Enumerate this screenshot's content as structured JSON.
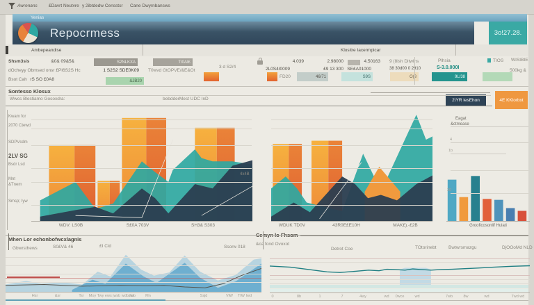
{
  "menu": {
    "items": [
      "Awrenans",
      "£Davrt Neutvre",
      "y 2ibtdedw Censstsr",
      "Cane Dwyrnbansws"
    ]
  },
  "header": {
    "tab_label": "Yenias",
    "title": "Repocrmess",
    "badge_value": "3o!27.28."
  },
  "tabbar": {
    "active_tab": "Ambepeandise",
    "second_tab": "Klositre Iacermpicar"
  },
  "kpi": {
    "row1": {
      "label": "Shsm3sis",
      "value": "&0& 09&5&",
      "bar1_text": "S2NLKXA",
      "bar2_text": "TI0AI£",
      "v2": "4.039",
      "v3": "2.98000",
      "v4": "4.50163",
      "v5": "9 (8ish Ditwlns",
      "group_label": "Plhsia",
      "tag1": "TIOS",
      "tag2": "WISIBIE"
    },
    "row2": {
      "label": "dOcheyy Obmsed onsr £PI6S2S Hc",
      "value": "1 S2S2 SDE0K09",
      "mid_text": "T0wvd GtOPVE/&E&Ot",
      "v2": "3 d S2/4",
      "v3": "2L0S4I0009",
      "v4": "£9 13 300",
      "v5": "SE£A01000",
      "v6": "38 30d00 0 2910",
      "accent_value": "S-3.0.000I",
      "right_text": "500kg &"
    },
    "row3": {
      "label": "Bsot Cah",
      "value": "rS SO £0A8",
      "green_bar_text": "&JB20",
      "orange_caption": "FD20",
      "gray_bar_text": "46/71",
      "teal_light_text": "S9S",
      "tan_bar_text": "O(3",
      "teal_bar_text": "9L/38"
    }
  },
  "section": {
    "title": "Sontesso Klosux",
    "subtitle": "Wwcs Blestiamo Gosoxdra:",
    "center_label": "bebdderMest UDC InD",
    "dark_button": "2\\YR lesEhon",
    "orange_button": "4E KKlorbxt"
  },
  "bottom_left": {
    "title": "Mhen Lor echonbofwcxlagnis",
    "labels": [
      "Gbwrsthews",
      "S0£V& 46",
      "£I Cld",
      "Ssorw 018"
    ]
  },
  "bottom_right": {
    "title": "Cemyn lo Fhsom",
    "subtitle": "&ca fond Ovoxot",
    "labels": [
      "Detrot Coe",
      "TOtorinebt",
      "Bwtwrsmazgu",
      "DjOOoMd NLD"
    ]
  },
  "colors": {
    "accent_teal": "#2fa8a2",
    "accent_orange": "#ef9840",
    "navy": "#2b3e50",
    "badge_teal": "#3aa9a4",
    "bar_orange_light": "#f6b13f",
    "bar_orange_dark": "#df5f31"
  },
  "chart_data": [
    {
      "name": "composite-bars-areas-left",
      "type": "area",
      "title": "",
      "xlabel": "",
      "ylabel": "",
      "categories": [
        "WDV: LS0B",
        "S£0A 703V",
        "SH3& S303"
      ],
      "y_labels": [
        "Kwam for",
        "2070 Ctewd",
        "SDPVcdm",
        "2LV SG",
        "Bsdr Lsd",
        "Mnt",
        "&Tnem",
        "Smsp; Iyw"
      ],
      "annotation": "4x4B",
      "ylim": [
        0,
        100
      ],
      "grid": true,
      "bars": [
        {
          "x": 8,
          "w": 21,
          "v": 70
        },
        {
          "x": 30,
          "w": 10,
          "v": 37
        },
        {
          "x": 41,
          "w": 20,
          "v": 95
        },
        {
          "x": 74,
          "w": 18,
          "v": 86
        }
      ],
      "series": [
        {
          "name": "teal-area",
          "color": "#2fa8a2",
          "opacity": 0.92,
          "points": [
            [
              4,
              19
            ],
            [
              20,
              36
            ],
            [
              29,
              11
            ],
            [
              37,
              16
            ],
            [
              50,
              55
            ],
            [
              56,
              45
            ],
            [
              62,
              36
            ],
            [
              64,
              47
            ],
            [
              74,
              66
            ],
            [
              77,
              58
            ],
            [
              82,
              55
            ],
            [
              91,
              55
            ],
            [
              100,
              52
            ]
          ]
        },
        {
          "name": "navy-area",
          "color": "#2b3e50",
          "opacity": 0.95,
          "points": [
            [
              4,
              4
            ],
            [
              20,
              10
            ],
            [
              29,
              13
            ],
            [
              37,
              7
            ],
            [
              50,
              30
            ],
            [
              56,
              21
            ],
            [
              62,
              7
            ],
            [
              74,
              34
            ],
            [
              82,
              30
            ],
            [
              91,
              51
            ],
            [
              100,
              56
            ]
          ]
        }
      ],
      "lines": [
        {
          "name": "trend-line-1",
          "color": "#e8e5de",
          "points": [
            [
              20,
              5
            ],
            [
              50,
              3
            ],
            [
              64,
              75
            ]
          ]
        },
        {
          "name": "trend-line-2",
          "color": "#e8e5de",
          "points": [
            [
              77,
              5
            ],
            [
              100,
              32
            ]
          ]
        }
      ]
    },
    {
      "name": "composite-bars-areas-right",
      "type": "area",
      "categories": [
        "WDUK TD0V",
        "43R0E£E10H",
        "MAK£).-£2B"
      ],
      "ylim": [
        0,
        100
      ],
      "grid": true,
      "bars": [
        {
          "x": 1,
          "w": 18,
          "v": 71
        },
        {
          "x": 25,
          "w": 19,
          "v": 74
        }
      ],
      "series": [
        {
          "name": "teal-area",
          "color": "#2fa8a2",
          "opacity": 0.92,
          "points": [
            [
              0,
              30
            ],
            [
              9,
              41
            ],
            [
              16,
              30
            ],
            [
              22,
              17
            ],
            [
              44,
              9
            ],
            [
              57,
              62
            ],
            [
              66,
              34
            ],
            [
              72,
              40
            ],
            [
              90,
              98
            ],
            [
              96,
              75
            ],
            [
              100,
              78
            ]
          ]
        },
        {
          "name": "orange-peak",
          "color": "#f09a3e",
          "opacity": 1,
          "points": [
            [
              58,
              27
            ],
            [
              67,
              50
            ],
            [
              80,
              27
            ]
          ]
        },
        {
          "name": "navy-area",
          "color": "#2b3e50",
          "opacity": 0.95,
          "points": [
            [
              0,
              4
            ],
            [
              14,
              17
            ],
            [
              24,
              8
            ],
            [
              44,
              41
            ],
            [
              52,
              34
            ],
            [
              60,
              21
            ],
            [
              68,
              24
            ],
            [
              78,
              19
            ],
            [
              90,
              34
            ],
            [
              100,
              42
            ]
          ]
        }
      ],
      "lines": [
        {
          "name": "trend-line",
          "color": "#e8e5de",
          "points": [
            [
              30,
              2
            ],
            [
              56,
              54
            ]
          ]
        }
      ]
    },
    {
      "name": "mini-bar-panel",
      "type": "bar",
      "title": "Eagat",
      "subtitle": "&ctmease",
      "xlabel": "Grooficosonlif Hulati",
      "ticks": [
        "4",
        "1b",
        "20"
      ],
      "categories": [
        "",
        "",
        "",
        "",
        "",
        "",
        ""
      ],
      "values": [
        45,
        26,
        49,
        24,
        23,
        14,
        11
      ],
      "colors": [
        "#4fa8c4",
        "#f09a3e",
        "#27808e",
        "#e2603a",
        "#4f93bb",
        "#4a7fb0",
        "#d8503a"
      ],
      "ylim": [
        0,
        100
      ],
      "grid": true
    },
    {
      "name": "bottom-left-area-trend",
      "type": "area",
      "x_ticks": [
        "Hsr",
        "&sr",
        "Tsr",
        "Moy Twy ews jwsb wdbsm",
        "Jwb",
        "Mn",
        "Ssjd",
        "ViW",
        "TIW Iwd"
      ],
      "ylim": [
        0,
        100
      ],
      "grid": true,
      "series": [
        {
          "name": "light-layer",
          "color": "#a9cede",
          "opacity": 0.8,
          "points": [
            [
              0,
              18
            ],
            [
              8,
              27
            ],
            [
              14,
              20
            ],
            [
              22,
              24
            ],
            [
              30,
              18
            ],
            [
              36,
              50
            ],
            [
              41,
              38
            ],
            [
              47,
              92
            ],
            [
              53,
              55
            ],
            [
              58,
              40
            ],
            [
              64,
              48
            ],
            [
              70,
              90
            ],
            [
              76,
              50
            ],
            [
              83,
              28
            ],
            [
              90,
              42
            ],
            [
              97,
              80
            ],
            [
              100,
              83
            ]
          ]
        },
        {
          "name": "mid-layer",
          "color": "#62a8cc",
          "opacity": 0.85,
          "points": [
            [
              26,
              5
            ],
            [
              34,
              30
            ],
            [
              39,
              20
            ],
            [
              47,
              70
            ],
            [
              54,
              38
            ],
            [
              59,
              22
            ],
            [
              70,
              72
            ],
            [
              76,
              35
            ],
            [
              83,
              10
            ],
            [
              90,
              26
            ],
            [
              100,
              70
            ]
          ]
        }
      ],
      "lines": [
        {
          "name": "dark-line",
          "color": "#55534c",
          "points": [
            [
              0,
              16
            ],
            [
              15,
              18
            ],
            [
              30,
              14
            ],
            [
              45,
              16
            ],
            [
              55,
              15
            ],
            [
              62,
              16
            ],
            [
              70,
              12
            ],
            [
              78,
              10
            ],
            [
              85,
              20
            ],
            [
              92,
              40
            ],
            [
              100,
              58
            ]
          ]
        }
      ]
    },
    {
      "name": "bottom-right-line-trend",
      "type": "line",
      "x_ticks": [
        "0",
        "8b",
        "1",
        "7",
        "4wy",
        "wd",
        "0wce",
        "wd",
        "7wb",
        "8w",
        "wd",
        "Twd wd"
      ],
      "ylim": [
        0,
        100
      ],
      "grid": true,
      "series": [
        {
          "name": "light-bump",
          "color": "#bcd8e4",
          "opacity": 0.9,
          "points": [
            [
              50,
              62
            ],
            [
              52,
              68
            ],
            [
              60,
              68
            ],
            [
              62,
              62
            ]
          ]
        }
      ],
      "lines": [
        {
          "name": "teal-line",
          "color": "#1f7f83",
          "points": [
            [
              0,
              74
            ],
            [
              8,
              70
            ],
            [
              15,
              62
            ],
            [
              22,
              54
            ],
            [
              27,
              52
            ],
            [
              33,
              56
            ],
            [
              38,
              60
            ],
            [
              42,
              58
            ],
            [
              45,
              63
            ],
            [
              48,
              62
            ],
            [
              52,
              60
            ],
            [
              55,
              64
            ],
            [
              58,
              62
            ],
            [
              62,
              60
            ],
            [
              66,
              62
            ],
            [
              70,
              63
            ],
            [
              75,
              65
            ],
            [
              80,
              67
            ],
            [
              86,
              70
            ],
            [
              93,
              73
            ],
            [
              100,
              75
            ]
          ]
        }
      ]
    }
  ]
}
